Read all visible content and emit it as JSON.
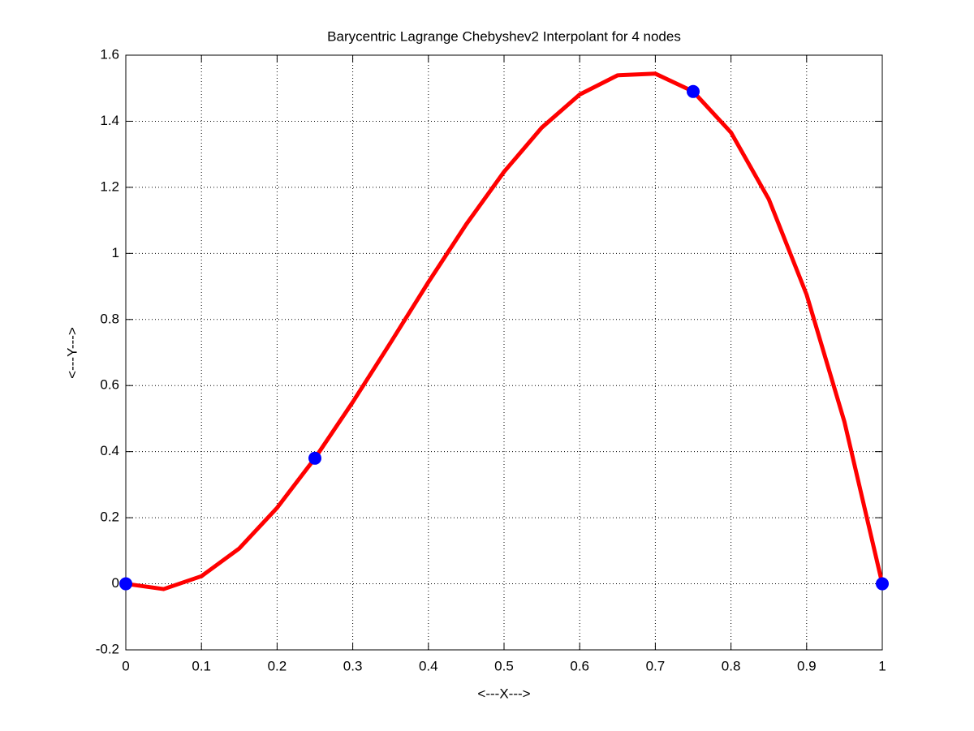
{
  "chart_data": {
    "type": "line",
    "title": "Barycentric Lagrange Chebyshev2 Interpolant for 4 nodes",
    "xlabel": "<---X--->",
    "ylabel": "<---Y--->",
    "xlim": [
      0,
      1
    ],
    "ylim": [
      -0.2,
      1.6
    ],
    "xticks": [
      0,
      0.1,
      0.2,
      0.3,
      0.4,
      0.5,
      0.6,
      0.7,
      0.8,
      0.9,
      1
    ],
    "yticks": [
      -0.2,
      0,
      0.2,
      0.4,
      0.6,
      0.8,
      1,
      1.2,
      1.4,
      1.6
    ],
    "grid": true,
    "series": [
      {
        "type": "line",
        "color": "#ff0000",
        "x": [
          0,
          0.05,
          0.1,
          0.15,
          0.2,
          0.25,
          0.3,
          0.35,
          0.4,
          0.45,
          0.5,
          0.55,
          0.6,
          0.65,
          0.7,
          0.75,
          0.8,
          0.85,
          0.9,
          0.95,
          1
        ],
        "values": [
          0,
          -0.016,
          0.023,
          0.107,
          0.23,
          0.38,
          0.55,
          0.73,
          0.913,
          1.088,
          1.247,
          1.381,
          1.481,
          1.539,
          1.544,
          1.49,
          1.366,
          1.164,
          0.875,
          0.49,
          0
        ]
      },
      {
        "type": "scatter",
        "color": "#0000ff",
        "x": [
          0,
          0.25,
          0.75,
          1
        ],
        "values": [
          0,
          0.38,
          1.49,
          0
        ]
      }
    ]
  }
}
